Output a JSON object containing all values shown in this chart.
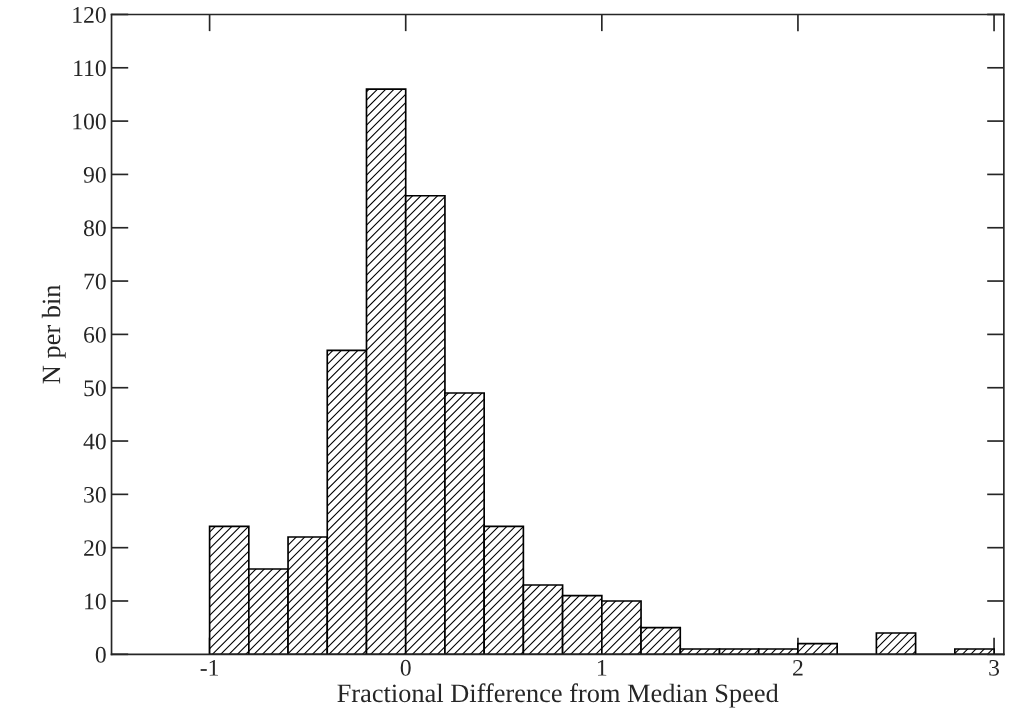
{
  "chart_data": {
    "type": "histogram",
    "xlabel": "Fractional Difference from Median Speed",
    "ylabel": "N per bin",
    "bins": [
      -1,
      -0.8,
      -0.6,
      -0.4,
      -0.2,
      0,
      0.2,
      0.4,
      0.6,
      0.8,
      1,
      1.2,
      1.4,
      1.6,
      1.8,
      2,
      2.2,
      2.4,
      2.6,
      2.8,
      3
    ],
    "values": [
      24,
      16,
      22,
      57,
      106,
      86,
      49,
      24,
      13,
      11,
      10,
      5,
      1,
      1,
      1,
      2,
      0,
      4,
      0,
      1
    ],
    "color": "#000000",
    "xlim": [
      -1.5,
      3.05
    ],
    "xticks": [
      -1,
      0,
      1,
      2,
      3
    ],
    "ylim": [
      0,
      120
    ],
    "yticks": [
      0,
      10,
      20,
      30,
      40,
      50,
      60,
      70,
      80,
      90,
      100,
      110,
      120
    ],
    "grid": false
  }
}
